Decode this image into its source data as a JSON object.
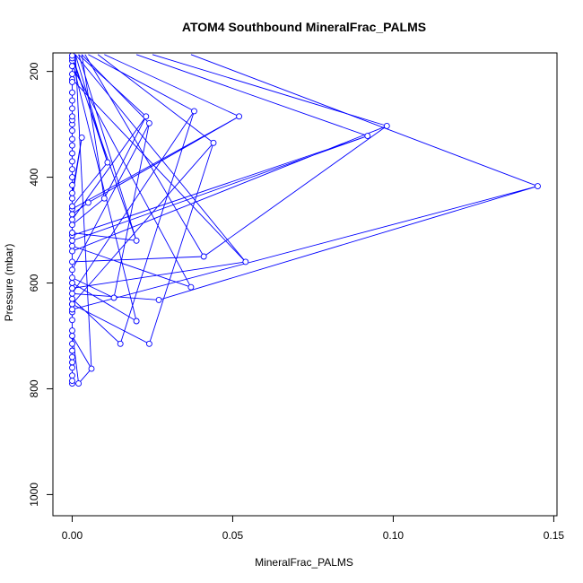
{
  "chart_data": {
    "type": "line",
    "title": "ATOM4 Southbound MineralFrac_PALMS",
    "xlabel": "MineralFrac_PALMS",
    "ylabel": "Pressure (mbar)",
    "xlim": [
      -0.006,
      0.151
    ],
    "ylim": [
      1040,
      165
    ],
    "y_reversed": true,
    "x_ticks": [
      0,
      0.05,
      0.1,
      0.15
    ],
    "x_tick_labels": [
      "0.00",
      "0.05",
      "0.10",
      "0.15"
    ],
    "y_ticks": [
      200,
      400,
      600,
      800,
      1000
    ],
    "y_tick_labels": [
      "200",
      "400",
      "600",
      "800",
      "1000"
    ],
    "grid": false,
    "series_color": "#0000ff",
    "series": [
      {
        "points": [
          [
            0,
            790
          ],
          [
            0,
            785
          ],
          [
            0,
            775
          ],
          [
            0,
            760
          ],
          [
            0,
            750
          ],
          [
            0,
            740
          ],
          [
            0,
            728
          ],
          [
            0,
            715
          ],
          [
            0,
            700
          ],
          [
            0.006,
            762
          ],
          [
            0.002,
            790
          ],
          [
            0,
            690
          ],
          [
            0,
            670
          ],
          [
            0,
            655
          ],
          [
            0,
            640
          ],
          [
            0.024,
            715
          ],
          [
            0.044,
            335
          ],
          [
            0,
            640
          ],
          [
            0,
            630
          ],
          [
            0.015,
            715
          ],
          [
            0.038,
            275
          ],
          [
            0,
            620
          ],
          [
            0.027,
            632
          ],
          [
            0.145,
            417
          ],
          [
            0,
            650
          ],
          [
            0,
            610
          ],
          [
            0.054,
            560
          ],
          [
            0,
            215
          ],
          [
            0,
            600
          ],
          [
            0.02,
            672
          ],
          [
            0,
            180
          ],
          [
            0,
            590
          ],
          [
            0.013,
            628
          ],
          [
            0.024,
            298
          ],
          [
            0,
            575
          ],
          [
            0,
            560
          ],
          [
            0.041,
            550
          ],
          [
            0.098,
            303
          ],
          [
            0,
            540
          ],
          [
            0,
            530
          ],
          [
            0.037,
            608
          ],
          [
            0,
            190
          ],
          [
            0,
            520
          ],
          [
            0.092,
            322
          ],
          [
            0,
            510
          ],
          [
            0,
            505
          ],
          [
            0.02,
            520
          ],
          [
            0,
            175
          ],
          [
            0,
            490
          ],
          [
            0.01,
            440
          ],
          [
            0.023,
            285
          ],
          [
            0,
            480
          ],
          [
            0,
            470
          ],
          [
            0.005,
            448
          ],
          [
            0.052,
            285
          ],
          [
            0,
            460
          ],
          [
            0,
            455
          ],
          [
            0.011,
            372
          ],
          [
            0,
            170
          ],
          [
            0,
            440
          ],
          [
            0.003,
            325
          ],
          [
            0,
            430
          ],
          [
            0,
            415
          ],
          [
            0,
            400
          ],
          [
            0,
            385
          ],
          [
            0,
            370
          ],
          [
            0,
            355
          ],
          [
            0,
            340
          ],
          [
            0,
            328
          ],
          [
            0,
            312
          ],
          [
            0,
            300
          ],
          [
            0,
            292
          ],
          [
            0,
            285
          ],
          [
            0,
            270
          ],
          [
            0,
            255
          ],
          [
            0,
            240
          ],
          [
            0,
            220
          ],
          [
            0,
            205
          ]
        ]
      }
    ],
    "upper_segments": [
      [
        [
          0.145,
          417
        ],
        [
          0.037,
          168
        ]
      ],
      [
        [
          0.098,
          303
        ],
        [
          0.025,
          168
        ]
      ],
      [
        [
          0.092,
          322
        ],
        [
          0.02,
          168
        ]
      ],
      [
        [
          0.052,
          285
        ],
        [
          0.01,
          168
        ]
      ],
      [
        [
          0.044,
          335
        ],
        [
          0.008,
          168
        ]
      ],
      [
        [
          0.038,
          275
        ],
        [
          0.005,
          168
        ]
      ],
      [
        [
          0.024,
          298
        ],
        [
          0.003,
          168
        ]
      ],
      [
        [
          0.023,
          285
        ],
        [
          0.002,
          168
        ]
      ],
      [
        [
          0.054,
          560
        ],
        [
          0.001,
          168
        ]
      ],
      [
        [
          0.041,
          550
        ],
        [
          0.004,
          168
        ]
      ],
      [
        [
          0.02,
          520
        ],
        [
          0.002,
          168
        ]
      ],
      [
        [
          0.011,
          372
        ],
        [
          0.001,
          168
        ]
      ],
      [
        [
          0.01,
          440
        ],
        [
          0.003,
          168
        ]
      ],
      [
        [
          0.006,
          762
        ],
        [
          0.001,
          168
        ]
      ]
    ]
  }
}
